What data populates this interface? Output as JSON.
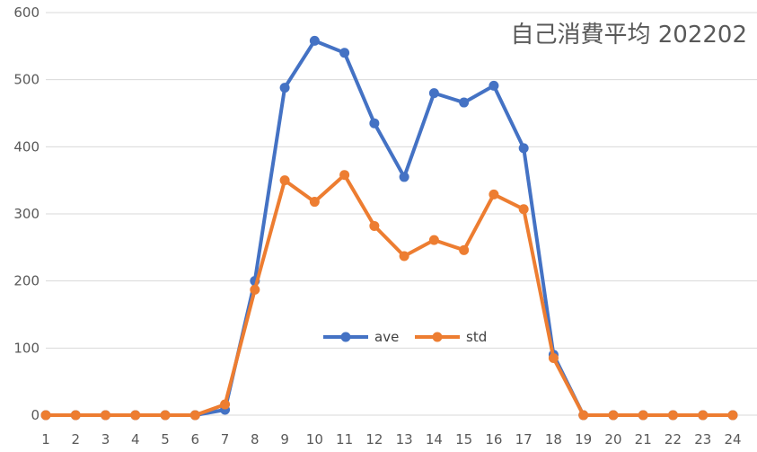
{
  "chart_data": {
    "type": "line",
    "title": "自己消費平均  202202",
    "xlabel": "",
    "ylabel": "",
    "categories": [
      "1",
      "2",
      "3",
      "4",
      "5",
      "6",
      "7",
      "8",
      "9",
      "10",
      "11",
      "12",
      "13",
      "14",
      "15",
      "16",
      "17",
      "18",
      "19",
      "20",
      "21",
      "22",
      "23",
      "24"
    ],
    "ylim": [
      0,
      600
    ],
    "yticks": [
      0,
      100,
      200,
      300,
      400,
      500,
      600
    ],
    "grid": true,
    "legend_position": "center",
    "series": [
      {
        "name": "ave",
        "color": "#4472C4",
        "values": [
          0,
          0,
          0,
          0,
          0,
          0,
          8,
          200,
          488,
          558,
          540,
          435,
          355,
          480,
          466,
          491,
          398,
          90,
          0,
          0,
          0,
          0,
          0,
          0
        ]
      },
      {
        "name": "std",
        "color": "#ED7D31",
        "values": [
          0,
          0,
          0,
          0,
          0,
          0,
          16,
          187,
          350,
          318,
          358,
          282,
          237,
          261,
          246,
          329,
          307,
          85,
          0,
          0,
          0,
          0,
          0,
          0
        ]
      }
    ]
  }
}
